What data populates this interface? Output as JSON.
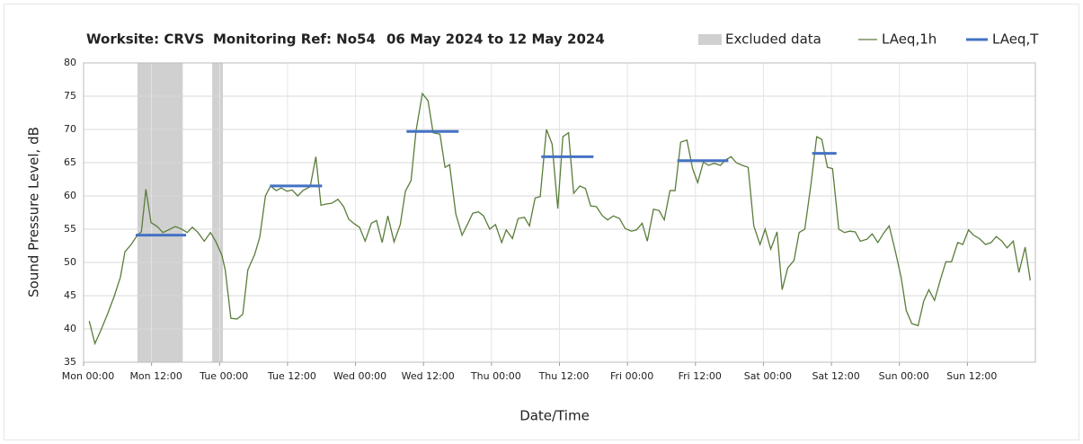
{
  "chart_data": {
    "type": "line",
    "title_parts": [
      "Worksite: CRVS",
      "Monitoring Ref: No54",
      "06 May 2024 to 12 May 2024"
    ],
    "x_label": "Date/Time",
    "y_label": "Sound Pressure Level, dB",
    "xlim": [
      0,
      168
    ],
    "xticks": [
      {
        "value": 0,
        "label": "Mon 00:00"
      },
      {
        "value": 12,
        "label": "Mon 12:00"
      },
      {
        "value": 24,
        "label": "Tue 00:00"
      },
      {
        "value": 36,
        "label": "Tue 12:00"
      },
      {
        "value": 48,
        "label": "Wed 00:00"
      },
      {
        "value": 60,
        "label": "Wed 12:00"
      },
      {
        "value": 72,
        "label": "Thu 00:00"
      },
      {
        "value": 84,
        "label": "Thu 12:00"
      },
      {
        "value": 96,
        "label": "Fri 00:00"
      },
      {
        "value": 108,
        "label": "Fri 12:00"
      },
      {
        "value": 120,
        "label": "Sat 00:00"
      },
      {
        "value": 132,
        "label": "Sat 12:00"
      },
      {
        "value": 144,
        "label": "Sun 00:00"
      },
      {
        "value": 156,
        "label": "Sun 12:00"
      }
    ],
    "ylim": [
      35,
      80
    ],
    "yticks": [
      35,
      40,
      45,
      50,
      55,
      60,
      65,
      70,
      75,
      80
    ],
    "grid": true,
    "legend": "top-right",
    "excluded": {
      "name": "Excluded data",
      "color": "#d0d0d0",
      "ranges": [
        [
          9.5,
          17.5
        ],
        [
          22.7,
          24.6
        ]
      ]
    },
    "series": [
      {
        "name": "LAeq,1h",
        "color": "#5a7d3a",
        "x": [
          1,
          2,
          3,
          4.3,
          5.4,
          6.5,
          7.3,
          8.4,
          9.5,
          10.2,
          11,
          11.9,
          13,
          14,
          15,
          16.2,
          17.3,
          18.3,
          19.2,
          20.2,
          21.3,
          22.4,
          23.3,
          24.4,
          25,
          26,
          27.1,
          28.1,
          29,
          30.2,
          31.1,
          32.1,
          33,
          34,
          34.9,
          35.9,
          36.8,
          37.8,
          38.7,
          40,
          41,
          41.9,
          42.9,
          43.8,
          44.9,
          45.9,
          46.8,
          47.8,
          48.7,
          49.7,
          50.8,
          51.7,
          52.7,
          53.7,
          54.8,
          55.9,
          56.8,
          57.8,
          58.7,
          59.8,
          60.8,
          61.7,
          62.9,
          63.8,
          64.6,
          65.7,
          66.8,
          67.8,
          68.7,
          69.7,
          70.6,
          71.7,
          72.7,
          73.8,
          74.6,
          75.7,
          76.7,
          77.8,
          78.7,
          79.7,
          80.6,
          81.7,
          82.7,
          83.7,
          84.6,
          85.6,
          86.5,
          87.6,
          88.6,
          89.5,
          90.5,
          91.6,
          92.5,
          93.5,
          94.6,
          95.6,
          96.7,
          97.6,
          98.6,
          99.5,
          100.6,
          101.6,
          102.5,
          103.5,
          104.4,
          105.4,
          106.5,
          107.5,
          108.4,
          109.4,
          110.3,
          111.3,
          112.4,
          113.3,
          114.3,
          115.2,
          116.3,
          117.3,
          118.3,
          119.4,
          120.3,
          121.3,
          122.4,
          123.3,
          124.3,
          125.4,
          126.3,
          127.3,
          128.4,
          129.4,
          130.3,
          131.3,
          132.2,
          133.3,
          134.3,
          135.2,
          136.2,
          137.1,
          138.3,
          139.2,
          140.2,
          141.3,
          142.2,
          143.3,
          144.3,
          145.2,
          146.2,
          147.3,
          148.3,
          149.2,
          150.2,
          151.3,
          152.2,
          153.2,
          154.3,
          155.2,
          156.2,
          157.1,
          158.1,
          159.2,
          160.2,
          161.1,
          162.1,
          163,
          164.1,
          165.1,
          166.2,
          167.1
        ],
        "values": [
          41.2,
          37.8,
          39.7,
          42.4,
          44.9,
          47.8,
          51.6,
          52.7,
          54.1,
          54.6,
          61,
          56,
          55.4,
          54.5,
          54.9,
          55.4,
          55,
          54.5,
          55.3,
          54.5,
          53.2,
          54.5,
          53.2,
          51.1,
          48.9,
          41.6,
          41.5,
          42.2,
          48.9,
          51.2,
          53.8,
          60,
          61.5,
          60.8,
          61.2,
          60.7,
          60.9,
          60,
          60.8,
          61.4,
          65.9,
          58.6,
          58.8,
          58.9,
          59.5,
          58.4,
          56.5,
          55.8,
          55.3,
          53.2,
          55.9,
          56.3,
          53,
          57,
          53.1,
          55.7,
          60.7,
          62.3,
          69.9,
          75.4,
          74.3,
          69.5,
          69.3,
          64.3,
          64.7,
          57.3,
          54.1,
          55.8,
          57.4,
          57.6,
          57,
          55,
          55.7,
          53,
          54.9,
          53.6,
          56.6,
          56.8,
          55.5,
          59.7,
          59.9,
          70,
          67.8,
          58.1,
          68.9,
          69.5,
          60.4,
          61.5,
          61.1,
          58.5,
          58.4,
          57,
          56.4,
          57,
          56.6,
          55.1,
          54.7,
          54.9,
          55.9,
          53.2,
          58,
          57.8,
          56.4,
          60.8,
          60.8,
          68.1,
          68.4,
          64.1,
          62,
          65.1,
          64.6,
          64.9,
          64.6,
          65.4,
          65.9,
          65,
          64.6,
          64.3,
          55.5,
          52.7,
          55,
          52,
          54.6,
          45.9,
          49.2,
          50.3,
          54.5,
          55,
          61.8,
          68.9,
          68.5,
          64.3,
          64.1,
          55,
          54.5,
          54.7,
          54.6,
          53.2,
          53.5,
          54.3,
          53,
          54.5,
          55.5,
          51.6,
          47.8,
          42.8,
          40.8,
          40.5,
          44.2,
          45.9,
          44.3,
          47.6,
          50.1,
          50.1,
          53,
          52.7,
          54.9,
          54.1,
          53.6,
          52.7,
          53,
          53.9,
          53.2,
          52.2,
          53.2,
          48.5,
          52.3,
          47.3
        ]
      },
      {
        "name": "LAeq,T",
        "color": "#4472c4",
        "x_ranges": [
          [
            9.2,
            18.1
          ],
          [
            32.9,
            42.1
          ],
          [
            57,
            66.2
          ],
          [
            80.8,
            90
          ],
          [
            104.8,
            113.8
          ],
          [
            128.6,
            132.9
          ]
        ],
        "values": [
          54.1,
          61.5,
          69.7,
          65.9,
          65.3,
          66.4
        ]
      }
    ]
  }
}
